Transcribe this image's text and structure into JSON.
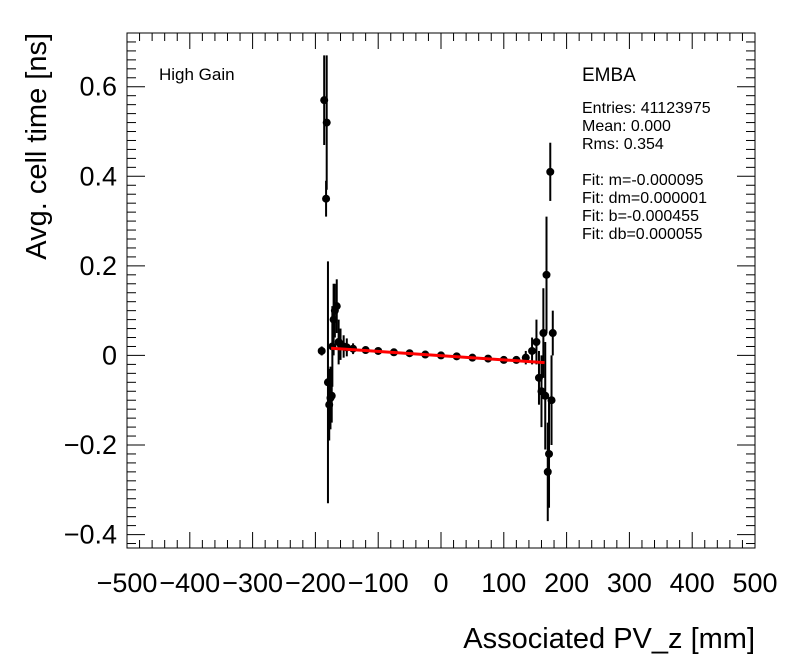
{
  "chart_data": {
    "type": "scatter",
    "title": "",
    "xlabel": "Associated PV_z [mm]",
    "ylabel": "Avg. cell time [ns]",
    "xlim": [
      -500,
      500
    ],
    "ylim": [
      -0.43,
      0.72
    ],
    "xticks": [
      -500,
      -400,
      -300,
      -200,
      -100,
      0,
      100,
      200,
      300,
      400,
      500
    ],
    "yticks": [
      -0.4,
      -0.2,
      0,
      0.2,
      0.4,
      0.6
    ],
    "xtick_labels": [
      "−500",
      "−400",
      "−300",
      "−200",
      "−100",
      "0",
      "100",
      "200",
      "300",
      "400",
      "500"
    ],
    "ytick_labels": [
      "−0.4",
      "−0.2",
      "0",
      "0.2",
      "0.4",
      "0.6"
    ],
    "grid": false,
    "annotations": {
      "gain": "High Gain",
      "partition": "EMBA",
      "stats": [
        "Entries: 41123975",
        "Mean: 0.000",
        "Rms: 0.354",
        "",
        "Fit: m=-0.000095",
        "Fit: dm=0.000001",
        "Fit: b=-0.000455",
        "Fit: db=0.000055"
      ]
    },
    "fit_line": {
      "m": -9.5e-05,
      "b": -0.000455,
      "x_range": [
        -175,
        165
      ],
      "color": "#ff0000"
    },
    "points": [
      {
        "x": -190,
        "y": 0.01,
        "err": 0.01
      },
      {
        "x": -186,
        "y": 0.57,
        "err": 0.1
      },
      {
        "x": -183,
        "y": 0.35,
        "err": 0.04
      },
      {
        "x": -182,
        "y": 0.52,
        "err": 0.15
      },
      {
        "x": -180,
        "y": -0.06,
        "err": 0.27
      },
      {
        "x": -178,
        "y": -0.11,
        "err": 0.08
      },
      {
        "x": -176,
        "y": -0.095,
        "err": 0.07
      },
      {
        "x": -174,
        "y": -0.09,
        "err": 0.06
      },
      {
        "x": -173,
        "y": 0.02,
        "err": 0.09
      },
      {
        "x": -171,
        "y": 0.08,
        "err": 0.08
      },
      {
        "x": -169,
        "y": 0.1,
        "err": 0.06
      },
      {
        "x": -166,
        "y": 0.11,
        "err": 0.06
      },
      {
        "x": -163,
        "y": 0.03,
        "err": 0.05
      },
      {
        "x": -160,
        "y": 0.025,
        "err": 0.035
      },
      {
        "x": -155,
        "y": 0.02,
        "err": 0.025
      },
      {
        "x": -150,
        "y": 0.018,
        "err": 0.02
      },
      {
        "x": -140,
        "y": 0.015,
        "err": 0.012
      },
      {
        "x": -120,
        "y": 0.012,
        "err": 0.008
      },
      {
        "x": -100,
        "y": 0.01,
        "err": 0.005
      },
      {
        "x": -75,
        "y": 0.007,
        "err": 0.004
      },
      {
        "x": -50,
        "y": 0.005,
        "err": 0.003
      },
      {
        "x": -25,
        "y": 0.002,
        "err": 0.003
      },
      {
        "x": 0,
        "y": 0.0,
        "err": 0.003
      },
      {
        "x": 25,
        "y": -0.002,
        "err": 0.003
      },
      {
        "x": 50,
        "y": -0.005,
        "err": 0.003
      },
      {
        "x": 75,
        "y": -0.007,
        "err": 0.004
      },
      {
        "x": 100,
        "y": -0.01,
        "err": 0.005
      },
      {
        "x": 120,
        "y": -0.01,
        "err": 0.008
      },
      {
        "x": 135,
        "y": -0.005,
        "err": 0.015
      },
      {
        "x": 145,
        "y": 0.01,
        "err": 0.03
      },
      {
        "x": 152,
        "y": 0.03,
        "err": 0.05
      },
      {
        "x": 156,
        "y": -0.05,
        "err": 0.06
      },
      {
        "x": 160,
        "y": -0.08,
        "err": 0.08
      },
      {
        "x": 163,
        "y": 0.05,
        "err": 0.1
      },
      {
        "x": 166,
        "y": -0.09,
        "err": 0.12
      },
      {
        "x": 168,
        "y": 0.18,
        "err": 0.13
      },
      {
        "x": 170,
        "y": -0.26,
        "err": 0.11
      },
      {
        "x": 172,
        "y": -0.22,
        "err": 0.12
      },
      {
        "x": 174,
        "y": 0.41,
        "err": 0.065
      },
      {
        "x": 176,
        "y": -0.1,
        "err": 0.1
      },
      {
        "x": 178,
        "y": 0.05,
        "err": 0.05
      }
    ]
  }
}
